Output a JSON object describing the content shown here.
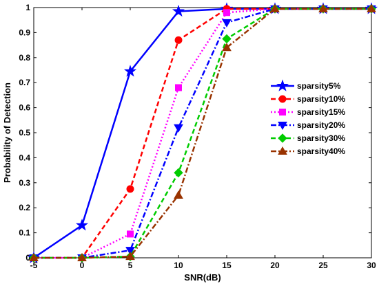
{
  "chart_data": {
    "type": "line",
    "xlabel": "SNR(dB)",
    "ylabel": "Probability of Detection",
    "xlim": [
      -5,
      30
    ],
    "ylim": [
      0,
      1
    ],
    "x_ticks": [
      "-5",
      "0",
      "5",
      "10",
      "15",
      "20",
      "25",
      "30"
    ],
    "y_ticks": [
      "0",
      "0.1",
      "0.2",
      "0.3",
      "0.4",
      "0.5",
      "0.6",
      "0.7",
      "0.8",
      "0.9",
      "1"
    ],
    "grid": false,
    "legend_position": "right",
    "series": [
      {
        "name": "sparsity5%",
        "color": "#0000ff",
        "dash": "solid",
        "marker": "star",
        "x": [
          -5,
          0,
          5,
          10,
          15,
          20,
          25,
          30
        ],
        "y": [
          0,
          0.13,
          0.745,
          0.985,
          0.995,
          0.995,
          0.995,
          0.995
        ]
      },
      {
        "name": "sparsity10%",
        "color": "#ff0000",
        "dash": "dashed",
        "marker": "circle",
        "x": [
          -5,
          0,
          5,
          10,
          15,
          20,
          25,
          30
        ],
        "y": [
          0,
          0,
          0.275,
          0.87,
          0.995,
          0.995,
          0.995,
          0.995
        ]
      },
      {
        "name": "sparsity15%",
        "color": "#ff00ff",
        "dash": "dotted",
        "marker": "square",
        "x": [
          -5,
          0,
          5,
          10,
          15,
          20,
          25,
          30
        ],
        "y": [
          0,
          0,
          0.095,
          0.68,
          0.98,
          0.995,
          0.995,
          0.995
        ]
      },
      {
        "name": "sparsity20%",
        "color": "#0000ff",
        "dash": "dashdot",
        "marker": "triangle-down",
        "x": [
          -5,
          0,
          5,
          10,
          15,
          20,
          25,
          30
        ],
        "y": [
          0,
          0,
          0.03,
          0.52,
          0.94,
          0.995,
          0.995,
          0.995
        ]
      },
      {
        "name": "sparsity30%",
        "color": "#00cc00",
        "dash": "dashed",
        "marker": "diamond",
        "x": [
          -5,
          0,
          5,
          10,
          15,
          20,
          25,
          30
        ],
        "y": [
          0,
          0,
          0.005,
          0.34,
          0.875,
          0.995,
          0.995,
          0.995
        ]
      },
      {
        "name": "sparsity40%",
        "color": "#993300",
        "dash": "dashdot",
        "marker": "triangle-up",
        "x": [
          -5,
          0,
          5,
          10,
          15,
          20,
          25,
          30
        ],
        "y": [
          0,
          0,
          0.005,
          0.25,
          0.84,
          0.995,
          0.995,
          0.995
        ]
      }
    ]
  }
}
